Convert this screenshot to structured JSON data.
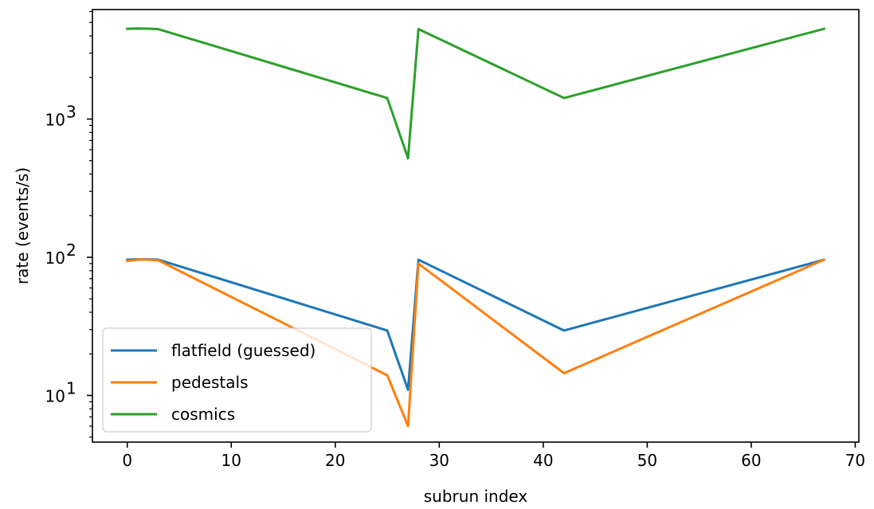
{
  "chart_data": {
    "type": "line",
    "title": "",
    "xlabel": "subrun index",
    "ylabel": "rate (events/s)",
    "xlim": [
      -3.35,
      70.35
    ],
    "ylim": [
      4.6,
      6200
    ],
    "yscale": "log",
    "grid": false,
    "legend_position": "lower-left",
    "x_ticks": [
      0,
      10,
      20,
      30,
      40,
      50,
      60,
      70
    ],
    "x_tick_labels": [
      "0",
      "10",
      "20",
      "30",
      "40",
      "50",
      "60",
      "70"
    ],
    "y_major_ticks": [
      {
        "value": 10,
        "base": "10",
        "exp": "1"
      },
      {
        "value": 100,
        "base": "10",
        "exp": "2"
      },
      {
        "value": 1000,
        "base": "10",
        "exp": "3"
      }
    ],
    "x": [
      0,
      1,
      2,
      3,
      25,
      27,
      28,
      42,
      67
    ],
    "series": [
      {
        "name": "flatfield (guessed)",
        "color": "#1f77b4",
        "values": [
          96,
          96.5,
          96.5,
          96,
          29.5,
          11,
          96,
          29.5,
          96
        ]
      },
      {
        "name": "pedestals",
        "color": "#ff7f0e",
        "values": [
          94,
          96,
          96,
          95,
          14,
          6,
          90,
          14.5,
          96
        ]
      },
      {
        "name": "cosmics",
        "color": "#2ca02c",
        "values": [
          4500,
          4520,
          4510,
          4470,
          1420,
          520,
          4480,
          1420,
          4500
        ]
      }
    ]
  }
}
